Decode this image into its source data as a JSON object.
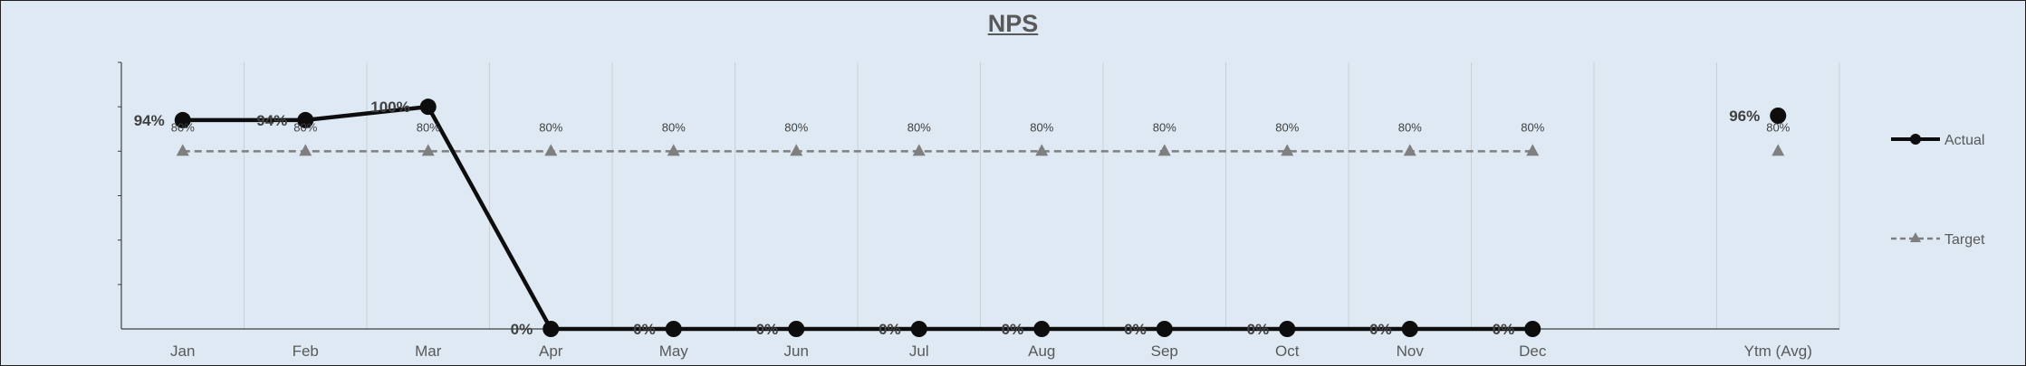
{
  "chart_data": {
    "type": "line",
    "title": "NPS",
    "categories": [
      "Jan",
      "Feb",
      "Mar",
      "Apr",
      "May",
      "Jun",
      "Jul",
      "Aug",
      "Sep",
      "Oct",
      "Nov",
      "Dec",
      "",
      "Ytm (Avg)"
    ],
    "ylim": [
      0,
      1.2
    ],
    "grid": "vertical",
    "legend_position": "right",
    "series": [
      {
        "name": "Actual",
        "color": "#0d0d0d",
        "marker": "circle",
        "values": [
          0.94,
          0.94,
          1.0,
          0,
          0,
          0,
          0,
          0,
          0,
          0,
          0,
          0,
          null,
          0.96
        ],
        "labels": [
          "94%",
          "94%",
          "100%",
          "0%",
          "0%",
          "0%",
          "0%",
          "0%",
          "0%",
          "0%",
          "0%",
          "0%",
          null,
          "96%"
        ]
      },
      {
        "name": "Target",
        "color": "#7f7f7f",
        "marker": "triangle",
        "dashed": true,
        "values": [
          0.8,
          0.8,
          0.8,
          0.8,
          0.8,
          0.8,
          0.8,
          0.8,
          0.8,
          0.8,
          0.8,
          0.8,
          null,
          0.8
        ],
        "labels": [
          "80%",
          "80%",
          "80%",
          "80%",
          "80%",
          "80%",
          "80%",
          "80%",
          "80%",
          "80%",
          "80%",
          "80%",
          null,
          "80%"
        ]
      }
    ]
  }
}
